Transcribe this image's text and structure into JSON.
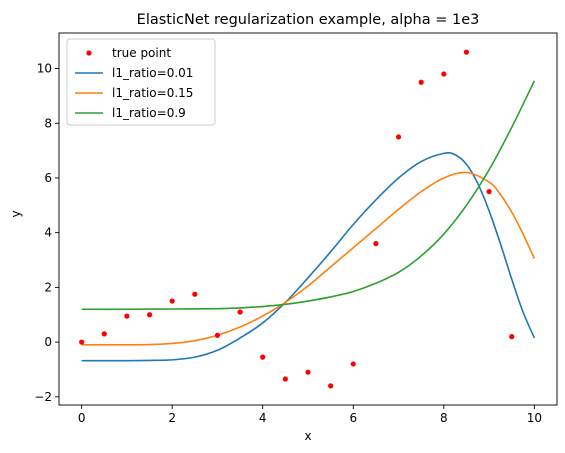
{
  "chart_data": {
    "type": "line",
    "title": "ElasticNet regularization example, alpha = 1e3",
    "xlabel": "x",
    "ylabel": "y",
    "xlim": [
      -0.5,
      10.5
    ],
    "ylim": [
      -2.3,
      11.3
    ],
    "xticks": [
      0,
      2,
      4,
      6,
      8,
      10
    ],
    "yticks": [
      -2,
      0,
      2,
      4,
      6,
      8,
      10
    ],
    "grid": false,
    "legend_position": "top-left",
    "scatter": {
      "name": "true point",
      "color": "#ff0000",
      "x": [
        0,
        0.5,
        1,
        1.5,
        2,
        2.5,
        3,
        3.5,
        4,
        4.5,
        5,
        5.5,
        6,
        6.5,
        7,
        7.5,
        8,
        8.5,
        9,
        9.5
      ],
      "y": [
        0.0,
        0.3,
        0.95,
        1.0,
        1.5,
        1.75,
        0.25,
        1.1,
        -0.55,
        -1.35,
        -1.1,
        -1.6,
        -0.8,
        3.6,
        7.5,
        9.5,
        9.8,
        10.6,
        5.5,
        0.2
      ]
    },
    "series": [
      {
        "name": "l1_ratio=0.01",
        "color": "#1f77b4",
        "x": [
          0,
          0.5,
          1,
          1.5,
          2,
          2.5,
          3,
          3.5,
          4,
          4.5,
          5,
          5.5,
          6,
          6.5,
          7,
          7.5,
          8,
          8.25,
          8.5,
          8.75,
          9,
          9.25,
          9.5,
          9.75,
          10
        ],
        "y": [
          -0.68,
          -0.68,
          -0.68,
          -0.67,
          -0.65,
          -0.55,
          -0.3,
          0.15,
          0.7,
          1.45,
          2.35,
          3.3,
          4.3,
          5.2,
          6.0,
          6.6,
          6.9,
          6.85,
          6.5,
          5.8,
          4.8,
          3.6,
          2.3,
          1.1,
          0.15
        ]
      },
      {
        "name": "l1_ratio=0.15",
        "color": "#ff7f0e",
        "x": [
          0,
          0.5,
          1,
          1.5,
          2,
          2.5,
          3,
          3.5,
          4,
          4.5,
          5,
          5.5,
          6,
          6.5,
          7,
          7.5,
          8,
          8.5,
          9,
          9.25,
          9.5,
          9.75,
          10
        ],
        "y": [
          -0.1,
          -0.1,
          -0.1,
          -0.09,
          -0.05,
          0.05,
          0.25,
          0.55,
          0.95,
          1.45,
          2.05,
          2.75,
          3.45,
          4.15,
          4.85,
          5.5,
          6.0,
          6.2,
          5.85,
          5.4,
          4.75,
          3.95,
          3.05
        ]
      },
      {
        "name": "l1_ratio=0.9",
        "color": "#2ca02c",
        "x": [
          0,
          1,
          2,
          3,
          3.5,
          4,
          4.5,
          5,
          5.5,
          6,
          6.5,
          7,
          7.5,
          8,
          8.5,
          9,
          9.5,
          10
        ],
        "y": [
          1.2,
          1.2,
          1.21,
          1.22,
          1.25,
          1.3,
          1.38,
          1.5,
          1.65,
          1.85,
          2.15,
          2.55,
          3.15,
          3.95,
          5.0,
          6.3,
          7.85,
          9.55
        ]
      }
    ]
  }
}
